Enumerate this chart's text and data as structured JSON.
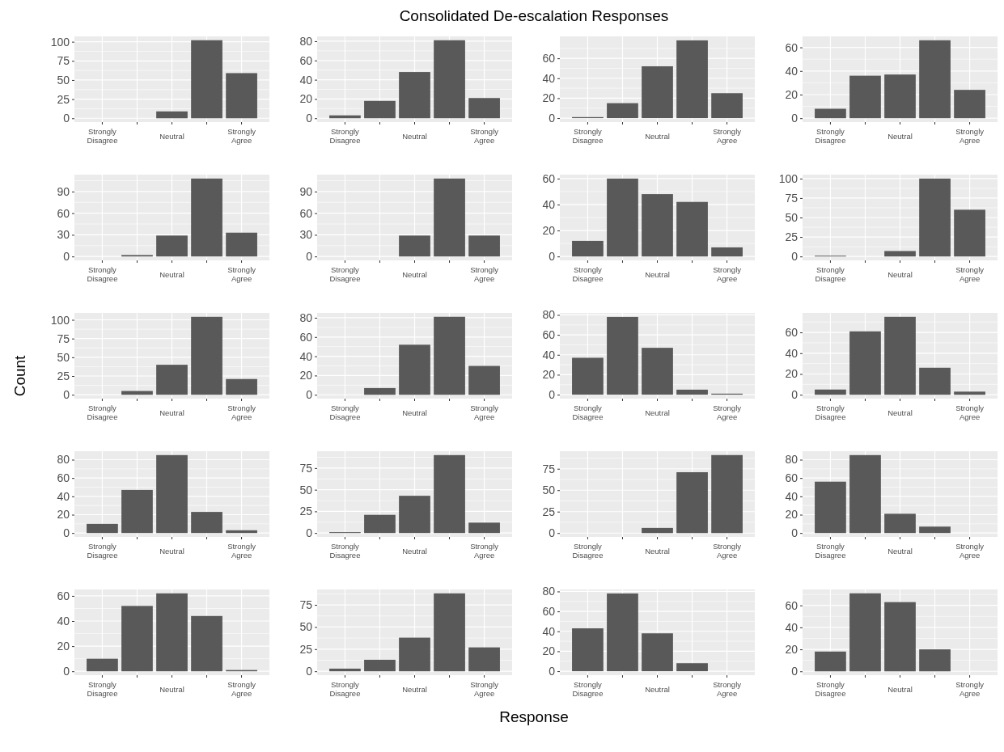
{
  "chart_data": [
    {
      "type": "other",
      "title": "Consolidated De-escalation Responses",
      "xlabel": "Response",
      "ylabel": "Count"
    },
    {
      "type": "bar",
      "categories": [
        "Strongly\nDisagree",
        null,
        "Neutral",
        null,
        "Strongly\nAgree"
      ],
      "values": [
        0,
        0,
        9,
        102,
        59
      ],
      "color": "#595959",
      "ylim": [
        -5,
        107
      ],
      "yticks": [
        0,
        25,
        50,
        75,
        100
      ],
      "grid": true
    },
    {
      "type": "bar",
      "categories": [
        "Strongly\nDisagree",
        null,
        "Neutral",
        null,
        "Strongly\nAgree"
      ],
      "values": [
        3,
        18,
        48,
        81,
        21
      ],
      "color": "#595959",
      "ylim": [
        -4,
        85
      ],
      "yticks": [
        0,
        20,
        40,
        60,
        80
      ],
      "grid": true
    },
    {
      "type": "bar",
      "categories": [
        "Strongly\nDisagree",
        null,
        "Neutral",
        null,
        "Strongly\nAgree"
      ],
      "values": [
        1,
        15,
        52,
        78,
        25
      ],
      "color": "#595959",
      "ylim": [
        -4,
        82
      ],
      "yticks": [
        0,
        20,
        40,
        60
      ],
      "grid": true
    },
    {
      "type": "bar",
      "categories": [
        "Strongly\nDisagree",
        null,
        "Neutral",
        null,
        "Strongly\nAgree"
      ],
      "values": [
        8,
        36,
        37,
        66,
        24
      ],
      "color": "#595959",
      "ylim": [
        -3.3,
        69.3
      ],
      "yticks": [
        0,
        20,
        40,
        60
      ],
      "grid": true
    },
    {
      "type": "bar",
      "categories": [
        "Strongly\nDisagree",
        null,
        "Neutral",
        null,
        "Strongly\nAgree"
      ],
      "values": [
        0,
        2,
        29,
        108,
        33
      ],
      "color": "#595959",
      "ylim": [
        -5.4,
        113.4
      ],
      "yticks": [
        0,
        30,
        60,
        90
      ],
      "grid": true
    },
    {
      "type": "bar",
      "categories": [
        "Strongly\nDisagree",
        null,
        "Neutral",
        null,
        "Strongly\nAgree"
      ],
      "values": [
        0,
        0,
        29,
        108,
        29
      ],
      "color": "#595959",
      "ylim": [
        -5.4,
        113.4
      ],
      "yticks": [
        0,
        30,
        60,
        90
      ],
      "grid": true
    },
    {
      "type": "bar",
      "categories": [
        "Strongly\nDisagree",
        null,
        "Neutral",
        null,
        "Strongly\nAgree"
      ],
      "values": [
        12,
        60,
        48,
        42,
        7
      ],
      "color": "#595959",
      "ylim": [
        -3,
        63
      ],
      "yticks": [
        0,
        20,
        40,
        60
      ],
      "grid": true
    },
    {
      "type": "bar",
      "categories": [
        "Strongly\nDisagree",
        null,
        "Neutral",
        null,
        "Strongly\nAgree"
      ],
      "values": [
        1,
        0,
        7,
        100,
        60
      ],
      "color": "#595959",
      "ylim": [
        -5,
        105
      ],
      "yticks": [
        0,
        25,
        50,
        75,
        100
      ],
      "grid": true
    },
    {
      "type": "bar",
      "categories": [
        "Strongly\nDisagree",
        null,
        "Neutral",
        null,
        "Strongly\nAgree"
      ],
      "values": [
        0,
        5,
        40,
        104,
        21
      ],
      "color": "#595959",
      "ylim": [
        -5.2,
        109.2
      ],
      "yticks": [
        0,
        25,
        50,
        75,
        100
      ],
      "grid": true
    },
    {
      "type": "bar",
      "categories": [
        "Strongly\nDisagree",
        null,
        "Neutral",
        null,
        "Strongly\nAgree"
      ],
      "values": [
        0,
        7,
        52,
        81,
        30
      ],
      "color": "#595959",
      "ylim": [
        -4,
        85
      ],
      "yticks": [
        0,
        20,
        40,
        60,
        80
      ],
      "grid": true
    },
    {
      "type": "bar",
      "categories": [
        "Strongly\nDisagree",
        null,
        "Neutral",
        null,
        "Strongly\nAgree"
      ],
      "values": [
        37,
        78,
        47,
        5,
        1
      ],
      "color": "#595959",
      "ylim": [
        -4,
        82
      ],
      "yticks": [
        0,
        20,
        40,
        60,
        80
      ],
      "grid": true
    },
    {
      "type": "bar",
      "categories": [
        "Strongly\nDisagree",
        null,
        "Neutral",
        null,
        "Strongly\nAgree"
      ],
      "values": [
        5,
        61,
        75,
        26,
        3
      ],
      "color": "#595959",
      "ylim": [
        -3.75,
        78.75
      ],
      "yticks": [
        0,
        20,
        40,
        60
      ],
      "grid": true
    },
    {
      "type": "bar",
      "categories": [
        "Strongly\nDisagree",
        null,
        "Neutral",
        null,
        "Strongly\nAgree"
      ],
      "values": [
        10,
        47,
        85,
        23,
        3
      ],
      "color": "#595959",
      "ylim": [
        -4.25,
        89.25
      ],
      "yticks": [
        0,
        20,
        40,
        60,
        80
      ],
      "grid": true
    },
    {
      "type": "bar",
      "categories": [
        "Strongly\nDisagree",
        null,
        "Neutral",
        null,
        "Strongly\nAgree"
      ],
      "values": [
        1,
        21,
        43,
        90,
        12
      ],
      "color": "#595959",
      "ylim": [
        -4.5,
        94.5
      ],
      "yticks": [
        0,
        25,
        50,
        75
      ],
      "grid": true
    },
    {
      "type": "bar",
      "categories": [
        "Strongly\nDisagree",
        null,
        "Neutral",
        null,
        "Strongly\nAgree"
      ],
      "values": [
        0,
        0,
        6,
        71,
        91
      ],
      "color": "#595959",
      "ylim": [
        -4.5,
        95.5
      ],
      "yticks": [
        0,
        25,
        50,
        75
      ],
      "grid": true
    },
    {
      "type": "bar",
      "categories": [
        "Strongly\nDisagree",
        null,
        "Neutral",
        null,
        "Strongly\nAgree"
      ],
      "values": [
        56,
        85,
        21,
        7,
        0
      ],
      "color": "#595959",
      "ylim": [
        -4.25,
        89.25
      ],
      "yticks": [
        0,
        20,
        40,
        60,
        80
      ],
      "grid": true
    },
    {
      "type": "bar",
      "categories": [
        "Strongly\nDisagree",
        null,
        "Neutral",
        null,
        "Strongly\nAgree"
      ],
      "values": [
        10,
        52,
        62,
        44,
        1
      ],
      "color": "#595959",
      "ylim": [
        -3.1,
        65.1
      ],
      "yticks": [
        0,
        20,
        40,
        60
      ],
      "grid": true
    },
    {
      "type": "bar",
      "categories": [
        "Strongly\nDisagree",
        null,
        "Neutral",
        null,
        "Strongly\nAgree"
      ],
      "values": [
        3,
        13,
        38,
        88,
        27
      ],
      "color": "#595959",
      "ylim": [
        -4.4,
        92.4
      ],
      "yticks": [
        0,
        25,
        50,
        75
      ],
      "grid": true
    },
    {
      "type": "bar",
      "categories": [
        "Strongly\nDisagree",
        null,
        "Neutral",
        null,
        "Strongly\nAgree"
      ],
      "values": [
        43,
        78,
        38,
        8,
        0
      ],
      "color": "#595959",
      "ylim": [
        -4,
        82
      ],
      "yticks": [
        0,
        20,
        40,
        60,
        80
      ],
      "grid": true
    },
    {
      "type": "bar",
      "categories": [
        "Strongly\nDisagree",
        null,
        "Neutral",
        null,
        "Strongly\nAgree"
      ],
      "values": [
        18,
        71,
        63,
        20,
        0
      ],
      "color": "#595959",
      "ylim": [
        -3.5,
        74.5
      ],
      "yticks": [
        0,
        20,
        40,
        60
      ],
      "grid": true
    }
  ]
}
